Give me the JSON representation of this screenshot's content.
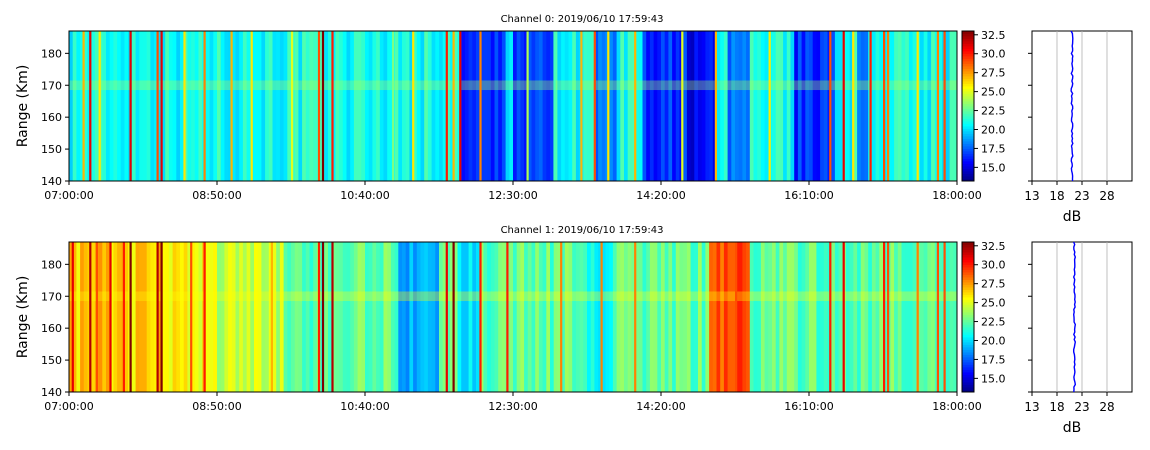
{
  "chart_data": [
    {
      "type": "heatmap",
      "title": "Channel 0: 2019/06/10 17:59:43",
      "ylabel": "Range (Km)",
      "ylim": [
        140,
        187
      ],
      "y_ticks": [
        140,
        150,
        160,
        170,
        180
      ],
      "x_ticks": [
        "07:00:00",
        "08:50:00",
        "10:40:00",
        "12:30:00",
        "14:20:00",
        "16:10:00",
        "18:00:00"
      ],
      "x_range": [
        "07:00:00",
        "18:00:00"
      ],
      "colorbar": {
        "colormap": "jet",
        "range": [
          13.2,
          33
        ],
        "ticks": [
          15.0,
          17.5,
          20.0,
          22.5,
          25.0,
          27.5,
          30.0,
          32.5
        ]
      },
      "baseline_dB": 21,
      "echo_layer_km": 170,
      "band_columns": [
        {
          "time": "07:10",
          "dB": 27
        },
        {
          "time": "07:15",
          "dB": 31
        },
        {
          "time": "07:22",
          "dB": 26
        },
        {
          "time": "07:45",
          "dB": 31
        },
        {
          "time": "08:05",
          "dB": 29
        },
        {
          "time": "08:08",
          "dB": 31
        },
        {
          "time": "08:25",
          "dB": 26
        },
        {
          "time": "08:40",
          "dB": 28
        },
        {
          "time": "09:00",
          "dB": 27
        },
        {
          "time": "09:15",
          "dB": 26
        },
        {
          "time": "09:45",
          "dB": 25
        },
        {
          "time": "10:05",
          "dB": 29
        },
        {
          "time": "10:08",
          "dB": 33
        },
        {
          "time": "10:15",
          "dB": 30
        },
        {
          "time": "11:00",
          "dB": 23
        },
        {
          "time": "11:15",
          "dB": 26
        },
        {
          "time": "11:40",
          "dB": 30
        },
        {
          "time": "11:45",
          "dB": 27
        },
        {
          "time": "11:50",
          "dB": 31
        },
        {
          "time": "12:05",
          "dB": 28
        },
        {
          "time": "12:40",
          "dB": 24
        },
        {
          "time": "13:00",
          "dB": 22
        },
        {
          "time": "13:20",
          "dB": 27
        },
        {
          "time": "13:30",
          "dB": 29
        },
        {
          "time": "13:40",
          "dB": 26
        },
        {
          "time": "14:00",
          "dB": 27
        },
        {
          "time": "14:35",
          "dB": 25
        },
        {
          "time": "15:00",
          "dB": 27
        },
        {
          "time": "15:40",
          "dB": 26
        },
        {
          "time": "16:25",
          "dB": 29
        },
        {
          "time": "16:35",
          "dB": 31
        },
        {
          "time": "16:42",
          "dB": 26
        },
        {
          "time": "16:55",
          "dB": 30
        },
        {
          "time": "17:05",
          "dB": 29
        },
        {
          "time": "17:08",
          "dB": 28
        },
        {
          "time": "17:30",
          "dB": 26
        },
        {
          "time": "17:45",
          "dB": 28
        },
        {
          "time": "17:50",
          "dB": 29
        }
      ],
      "low_blocks": [
        {
          "from": "11:52",
          "to": "12:25",
          "dB": 16.5
        },
        {
          "from": "12:30",
          "to": "13:00",
          "dB": 17
        },
        {
          "from": "13:30",
          "to": "13:48",
          "dB": 17.5
        },
        {
          "from": "14:05",
          "to": "14:40",
          "dB": 16.5
        },
        {
          "from": "14:40",
          "to": "15:00",
          "dB": 15.5
        },
        {
          "from": "15:10",
          "to": "15:25",
          "dB": 17.5
        },
        {
          "from": "16:00",
          "to": "16:30",
          "dB": 16.5
        },
        {
          "from": "16:45",
          "to": "16:55",
          "dB": 17.5
        }
      ],
      "profile": {
        "xlabel": "dB",
        "x_ticks": [
          13,
          18,
          23,
          28
        ],
        "xlim": [
          13,
          33
        ],
        "ylim": [
          140,
          187
        ],
        "value_dB": 21,
        "color": "#0000ff"
      }
    },
    {
      "type": "heatmap",
      "title": "Channel 1: 2019/06/10 17:59:43",
      "ylabel": "Range (Km)",
      "ylim": [
        140,
        187
      ],
      "y_ticks": [
        140,
        150,
        160,
        170,
        180
      ],
      "x_ticks": [
        "07:00:00",
        "08:50:00",
        "10:40:00",
        "12:30:00",
        "14:20:00",
        "16:10:00",
        "18:00:00"
      ],
      "x_range": [
        "07:00:00",
        "18:00:00"
      ],
      "colorbar": {
        "colormap": "jet",
        "range": [
          13.2,
          33
        ],
        "ticks": [
          15.0,
          17.5,
          20.0,
          22.5,
          25.0,
          27.5,
          30.0,
          32.5
        ]
      },
      "baseline_dB": 22.5,
      "echo_layer_km": 170,
      "band_columns": [
        {
          "time": "07:02",
          "dB": 31
        },
        {
          "time": "07:15",
          "dB": 32
        },
        {
          "time": "07:20",
          "dB": 29
        },
        {
          "time": "07:30",
          "dB": 31
        },
        {
          "time": "07:40",
          "dB": 30
        },
        {
          "time": "07:45",
          "dB": 33
        },
        {
          "time": "08:05",
          "dB": 32
        },
        {
          "time": "08:08",
          "dB": 33
        },
        {
          "time": "08:30",
          "dB": 29
        },
        {
          "time": "08:40",
          "dB": 30
        },
        {
          "time": "09:30",
          "dB": 27
        },
        {
          "time": "10:05",
          "dB": 30
        },
        {
          "time": "10:08",
          "dB": 33
        },
        {
          "time": "10:15",
          "dB": 32
        },
        {
          "time": "11:40",
          "dB": 31
        },
        {
          "time": "11:45",
          "dB": 33
        },
        {
          "time": "12:05",
          "dB": 30
        },
        {
          "time": "12:25",
          "dB": 30
        },
        {
          "time": "13:05",
          "dB": 28
        },
        {
          "time": "13:35",
          "dB": 28
        },
        {
          "time": "14:00",
          "dB": 28
        },
        {
          "time": "15:15",
          "dB": 29
        },
        {
          "time": "16:25",
          "dB": 30
        },
        {
          "time": "16:35",
          "dB": 31
        },
        {
          "time": "17:05",
          "dB": 30
        },
        {
          "time": "17:08",
          "dB": 29
        },
        {
          "time": "17:30",
          "dB": 28
        },
        {
          "time": "17:45",
          "dB": 29
        },
        {
          "time": "17:50",
          "dB": 29
        }
      ],
      "warm_blocks": [
        {
          "from": "07:00",
          "to": "08:15",
          "dB": 26.5
        },
        {
          "from": "08:15",
          "to": "08:50",
          "dB": 25.5
        },
        {
          "from": "08:50",
          "to": "09:40",
          "dB": 24.5
        },
        {
          "from": "14:55",
          "to": "15:25",
          "dB": 29
        }
      ],
      "low_blocks": [
        {
          "from": "11:05",
          "to": "11:35",
          "dB": 19
        },
        {
          "from": "11:50",
          "to": "12:05",
          "dB": 20
        },
        {
          "from": "13:25",
          "to": "13:45",
          "dB": 20.5
        }
      ],
      "profile": {
        "xlabel": "dB",
        "x_ticks": [
          13,
          18,
          23,
          28
        ],
        "xlim": [
          13,
          33
        ],
        "ylim": [
          140,
          187
        ],
        "value_dB": 21.5,
        "color": "#0000ff"
      }
    }
  ]
}
